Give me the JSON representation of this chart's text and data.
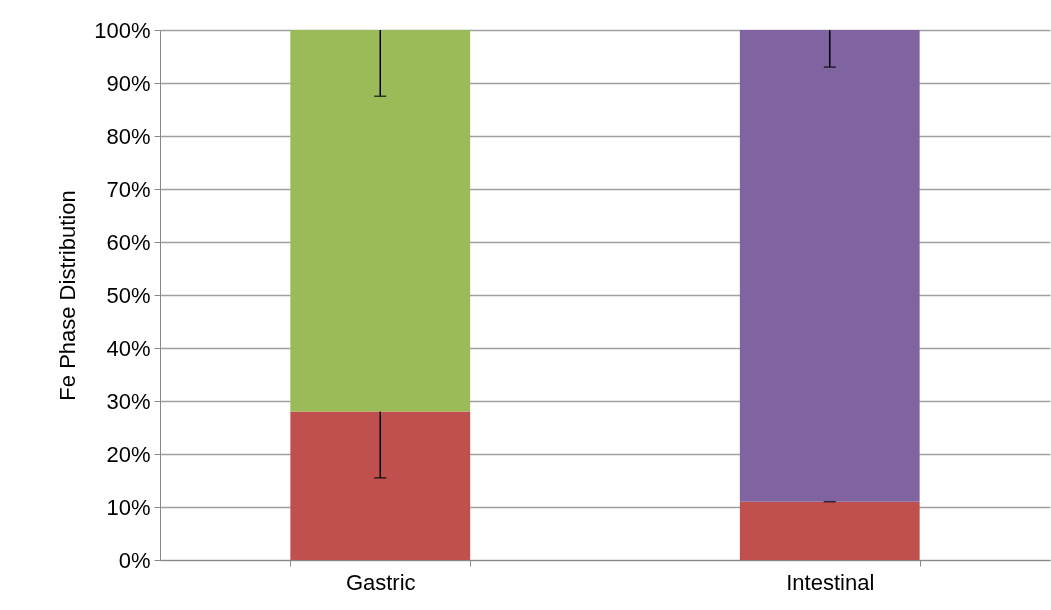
{
  "chart_data": {
    "type": "bar",
    "stacked": true,
    "ylabel": "Fe Phase Distribution",
    "categories": [
      "Gastric",
      "Intestinal"
    ],
    "series": [
      {
        "color": "#c0504d",
        "values": [
          28,
          11
        ],
        "errors": [
          [
            15.5,
            28
          ],
          [
            11,
            11
          ]
        ]
      },
      {
        "color": "#9bbb59",
        "values": [
          72,
          null
        ],
        "errors": [
          [
            87.5,
            100
          ],
          null
        ]
      },
      {
        "color": "#8064a2",
        "values": [
          null,
          89
        ],
        "errors": [
          null,
          [
            93,
            100
          ]
        ]
      }
    ],
    "ylim": [
      0,
      100
    ],
    "yticks": [
      {
        "value": 0,
        "label": "0%"
      },
      {
        "value": 10,
        "label": "10%"
      },
      {
        "value": 20,
        "label": "20%"
      },
      {
        "value": 30,
        "label": "30%"
      },
      {
        "value": 40,
        "label": "40%"
      },
      {
        "value": 50,
        "label": "50%"
      },
      {
        "value": 60,
        "label": "60%"
      },
      {
        "value": 70,
        "label": "70%"
      },
      {
        "value": 80,
        "label": "80%"
      },
      {
        "value": 90,
        "label": "90%"
      },
      {
        "value": 100,
        "label": "100%"
      }
    ],
    "grid": "y",
    "legend": false
  }
}
